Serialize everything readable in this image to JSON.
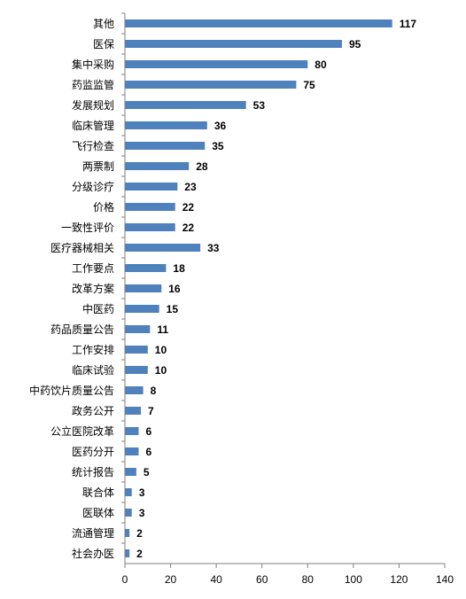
{
  "chart_data": {
    "type": "bar",
    "orientation": "horizontal",
    "title": "",
    "xlabel": "",
    "ylabel": "",
    "xlim": [
      0,
      140
    ],
    "x_ticks": [
      0,
      20,
      40,
      60,
      80,
      100,
      120,
      140
    ],
    "grid": false,
    "legend": "none",
    "bar_color": "#4f81bd",
    "categories": [
      "其他",
      "医保",
      "集中采购",
      "药监监管",
      "发展规划",
      "临床管理",
      "飞行检查",
      "两票制",
      "分级诊疗",
      "价格",
      "一致性评价",
      "医疗器械相关",
      "工作要点",
      "改革方案",
      "中医药",
      "药品质量公告",
      "工作安排",
      "临床试验",
      "中药饮片质量公告",
      "政务公开",
      "公立医院改革",
      "医药分开",
      "统计报告",
      "联合体",
      "医联体",
      "流通管理",
      "社会办医"
    ],
    "values": [
      117,
      95,
      80,
      75,
      53,
      36,
      35,
      28,
      23,
      22,
      22,
      33,
      18,
      16,
      15,
      11,
      10,
      10,
      8,
      7,
      6,
      6,
      5,
      3,
      3,
      2,
      2
    ]
  }
}
